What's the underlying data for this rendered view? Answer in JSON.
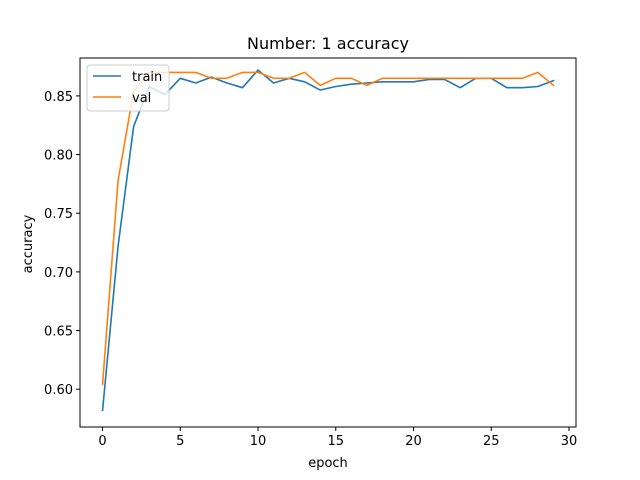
{
  "chart_data": {
    "type": "line",
    "title": "Number: 1 accuracy",
    "xlabel": "epoch",
    "ylabel": "accuracy",
    "xlim": [
      -1.45,
      30.45
    ],
    "ylim": [
      0.5678,
      0.8823
    ],
    "xticks": [
      0,
      5,
      10,
      15,
      20,
      25,
      30
    ],
    "xtick_labels": [
      "0",
      "5",
      "10",
      "15",
      "20",
      "25",
      "30"
    ],
    "yticks": [
      0.6,
      0.65,
      0.7,
      0.75,
      0.8,
      0.85
    ],
    "ytick_labels": [
      "0.60",
      "0.65",
      "0.70",
      "0.75",
      "0.80",
      "0.85"
    ],
    "grid": false,
    "legend": "top-left",
    "x": [
      0,
      1,
      2,
      3,
      4,
      5,
      6,
      7,
      8,
      9,
      10,
      11,
      12,
      13,
      14,
      15,
      16,
      17,
      18,
      19,
      20,
      21,
      22,
      23,
      24,
      25,
      26,
      27,
      28,
      29
    ],
    "series": [
      {
        "name": "train",
        "color": "#1f77b4",
        "values": [
          0.582,
          0.722,
          0.824,
          0.858,
          0.851,
          0.865,
          0.861,
          0.866,
          0.861,
          0.857,
          0.872,
          0.861,
          0.865,
          0.862,
          0.855,
          0.858,
          0.86,
          0.861,
          0.862,
          0.862,
          0.862,
          0.864,
          0.864,
          0.857,
          0.865,
          0.865,
          0.857,
          0.857,
          0.858,
          0.863
        ]
      },
      {
        "name": "val",
        "color": "#ff7f0e",
        "values": [
          0.604,
          0.778,
          0.854,
          0.87,
          0.87,
          0.87,
          0.87,
          0.865,
          0.865,
          0.87,
          0.87,
          0.865,
          0.865,
          0.87,
          0.859,
          0.865,
          0.865,
          0.859,
          0.865,
          0.865,
          0.865,
          0.865,
          0.865,
          0.865,
          0.865,
          0.865,
          0.865,
          0.865,
          0.87,
          0.859
        ]
      }
    ]
  }
}
